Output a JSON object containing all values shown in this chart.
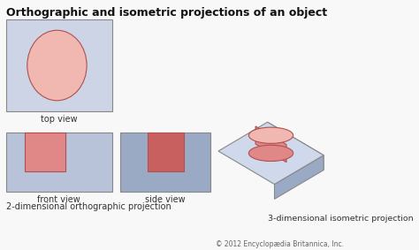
{
  "title": "Orthographic and isometric projections of an object",
  "title_fontsize": 9.0,
  "title_fontweight": "bold",
  "bg_color": "#f8f8f8",
  "label_top": "top view",
  "label_front": "front view",
  "label_side": "side view",
  "label_3d": "3-dimensional isometric projection",
  "label_2d": "2-dimensional orthographic projection",
  "label_copyright": "© 2012 Encyclopædia Britannica, Inc.",
  "box_front_color": "#b8c2d8",
  "box_right_color": "#9aaac4",
  "box_top_color": "#d0d8ec",
  "cyl_body_color": "#e08888",
  "cyl_top_color": "#f0b8b0",
  "cyl_edge_color": "#b05050",
  "outline_color": "#888888",
  "tv_fill": "#ccd4e6",
  "fv_fill": "#b8c2d8",
  "sv_fill": "#9aaac4",
  "circ_fill": "#f0b8b0",
  "circ_edge": "#b05050",
  "rect_front_fill": "#e08888",
  "rect_side_fill": "#c86060"
}
